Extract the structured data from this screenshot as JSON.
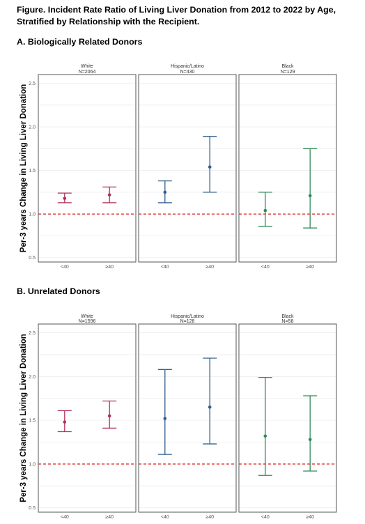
{
  "figure": {
    "title": "Figure. Incident Rate Ratio of Living Liver Donation from 2012 to 2022 by Age, Stratified by Relationship with the Recipient."
  },
  "chart_data": [
    {
      "type": "scatter",
      "section_title": "A. Biologically Related Donors",
      "ylabel": "Per-3 years Change in Living Liver Donation",
      "ylim": [
        0.45,
        2.6
      ],
      "yticks": [
        "0.5",
        "1.0",
        "1.5",
        "2.0",
        "2.5"
      ],
      "reference_line": 1.0,
      "reference_line_style": "dashed red",
      "categories": [
        "<40",
        "≥40"
      ],
      "grid": true,
      "panels": [
        {
          "name": "White",
          "n": "N=2064",
          "color": "#b03060",
          "points": [
            {
              "x": "<40",
              "y": 1.18,
              "lower": 1.13,
              "upper": 1.24
            },
            {
              "x": "≥40",
              "y": 1.22,
              "lower": 1.13,
              "upper": 1.31
            }
          ]
        },
        {
          "name": "Hispanic/Latino",
          "n": "N=430",
          "color": "#2e5e8e",
          "points": [
            {
              "x": "<40",
              "y": 1.25,
              "lower": 1.13,
              "upper": 1.38
            },
            {
              "x": "≥40",
              "y": 1.54,
              "lower": 1.25,
              "upper": 1.89
            }
          ]
        },
        {
          "name": "Black",
          "n": "N=129",
          "color": "#2e8b57",
          "points": [
            {
              "x": "<40",
              "y": 1.04,
              "lower": 0.86,
              "upper": 1.25
            },
            {
              "x": "≥40",
              "y": 1.21,
              "lower": 0.84,
              "upper": 1.75
            }
          ]
        }
      ]
    },
    {
      "type": "scatter",
      "section_title": "B. Unrelated Donors",
      "ylabel": "Per-3 years Change in Living Liver Donation",
      "ylim": [
        0.45,
        2.6
      ],
      "yticks": [
        "0.5",
        "1.0",
        "1.5",
        "2.0",
        "2.5"
      ],
      "reference_line": 1.0,
      "reference_line_style": "dashed red",
      "categories": [
        "<40",
        "≥40"
      ],
      "grid": true,
      "panels": [
        {
          "name": "White",
          "n": "N=1596",
          "color": "#b03060",
          "points": [
            {
              "x": "<40",
              "y": 1.48,
              "lower": 1.37,
              "upper": 1.61
            },
            {
              "x": "≥40",
              "y": 1.55,
              "lower": 1.41,
              "upper": 1.72
            }
          ]
        },
        {
          "name": "Hispanic/Latino",
          "n": "N=128",
          "color": "#2e5e8e",
          "points": [
            {
              "x": "<40",
              "y": 1.52,
              "lower": 1.11,
              "upper": 2.08
            },
            {
              "x": "≥40",
              "y": 1.65,
              "lower": 1.23,
              "upper": 2.21
            }
          ]
        },
        {
          "name": "Black",
          "n": "N=58",
          "color": "#2e8b57",
          "points": [
            {
              "x": "<40",
              "y": 1.32,
              "lower": 0.87,
              "upper": 1.99
            },
            {
              "x": "≥40",
              "y": 1.28,
              "lower": 0.92,
              "upper": 1.78
            }
          ]
        }
      ]
    }
  ]
}
